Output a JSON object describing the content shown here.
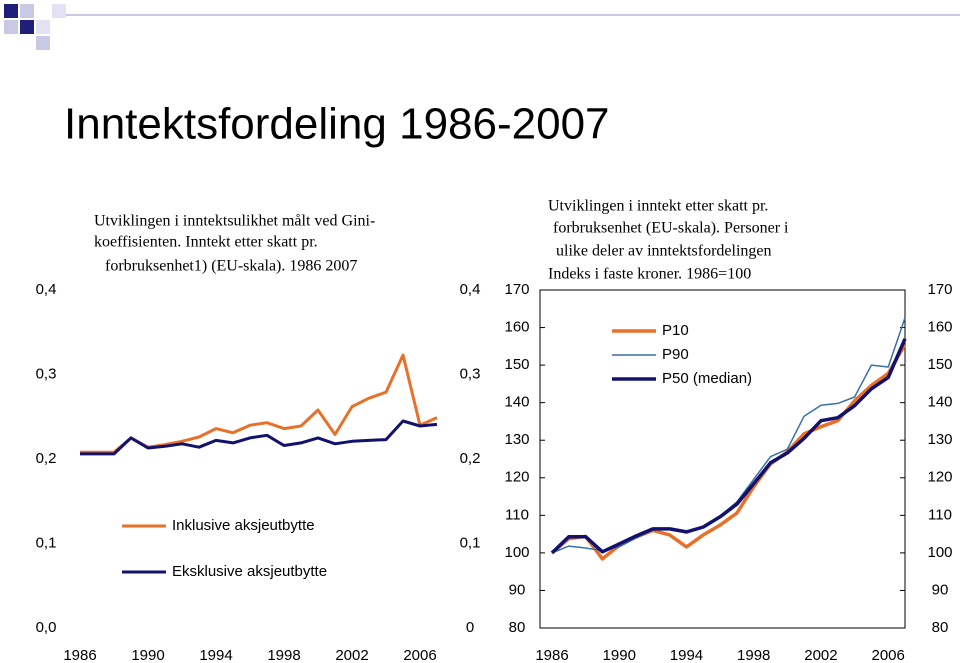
{
  "slide_title": "Inntektsfordeling 1986-2007",
  "chart_data": [
    {
      "type": "line",
      "title": [
        "Utviklingen i inntektsulikhet målt ved Gini-",
        "koeffisienten. Inntekt etter skatt pr.",
        "forbruksenhet1)  (EU-skala). 1986   2007"
      ],
      "x": [
        1986,
        1987,
        1988,
        1989,
        1990,
        1991,
        1992,
        1993,
        1994,
        1995,
        1996,
        1997,
        1998,
        1999,
        2000,
        2001,
        2002,
        2003,
        2004,
        2005,
        2006,
        2007
      ],
      "xlim": [
        1986,
        2007
      ],
      "xticks": [
        1986,
        1990,
        1994,
        1998,
        2002,
        2006
      ],
      "ylim": [
        0,
        0.4
      ],
      "yticks": [
        {
          "value": 0,
          "label": "0,0"
        },
        {
          "value": 0.1,
          "label": "0,1"
        },
        {
          "value": 0.2,
          "label": "0,2"
        },
        {
          "value": 0.3,
          "label": "0,3"
        },
        {
          "value": 0.4,
          "label": "0,4"
        }
      ],
      "y2lim": [
        0,
        0.4
      ],
      "y2ticks": [
        0,
        {
          "value": 0.1,
          "label": "0,1"
        },
        {
          "value": 0.2,
          "label": "0,2"
        },
        {
          "value": 0.3,
          "label": "0,3"
        },
        {
          "value": 0.4,
          "label": "0,4"
        }
      ],
      "series": [
        {
          "name": "Inklusive aksjeutbytte",
          "color": "#e8712a",
          "values": [
            0.208,
            0.208,
            0.208,
            0.225,
            0.214,
            0.217,
            0.221,
            0.226,
            0.236,
            0.231,
            0.24,
            0.243,
            0.236,
            0.239,
            0.258,
            0.229,
            0.262,
            0.272,
            0.279,
            0.323,
            0.24,
            0.249
          ]
        },
        {
          "name": "Eksklusive aksjeutbytte",
          "color": "#12126e",
          "values": [
            0.206,
            0.206,
            0.206,
            0.225,
            0.213,
            0.215,
            0.218,
            0.214,
            0.222,
            0.219,
            0.225,
            0.228,
            0.216,
            0.219,
            0.225,
            0.218,
            0.221,
            0.222,
            0.223,
            0.245,
            0.239,
            0.241
          ]
        }
      ]
    },
    {
      "type": "line",
      "title": [
        "Utviklingen i inntekt etter skatt pr.",
        "forbruksenhet (EU-skala). Personer i",
        "ulike deler av inntektsfordelingen",
        "Indeks i faste kroner. 1986=100"
      ],
      "x": [
        1986,
        1987,
        1988,
        1989,
        1990,
        1991,
        1992,
        1993,
        1994,
        1995,
        1996,
        1997,
        1998,
        1999,
        2000,
        2001,
        2002,
        2003,
        2004,
        2005,
        2006,
        2007
      ],
      "xlim": [
        1986,
        2007
      ],
      "xticks": [
        1986,
        1990,
        1994,
        1998,
        2002,
        2006
      ],
      "ylim": [
        80,
        170
      ],
      "yticks": [
        80,
        90,
        100,
        110,
        120,
        130,
        140,
        150,
        160,
        170
      ],
      "series": [
        {
          "name": "P10",
          "color": "#e8712a",
          "values": [
            100,
            103.8,
            104.4,
            98.4,
            102.0,
            104.2,
            106.0,
            104.8,
            101.6,
            104.8,
            107.4,
            110.6,
            117.6,
            123.7,
            126.9,
            131.7,
            133.6,
            135.2,
            140.5,
            144.6,
            147.8,
            155.5
          ]
        },
        {
          "name": "P90",
          "color": "#3a6fa8",
          "values": [
            100,
            101.8,
            101.3,
            100.6,
            101.6,
            104.0,
            106.1,
            106.4,
            105.3,
            106.9,
            109.8,
            113.6,
            119.6,
            125.6,
            127.6,
            136.4,
            139.3,
            139.8,
            141.5,
            150.0,
            149.5,
            162.6
          ]
        },
        {
          "name": "P50 (median)",
          "color": "#12126e",
          "values": [
            100,
            104.3,
            104.3,
            100.3,
            102.4,
            104.5,
            106.4,
            106.4,
            105.6,
            106.9,
            109.6,
            113.0,
            118.4,
            124.0,
            126.6,
            130.5,
            135.2,
            136.0,
            139.2,
            143.7,
            146.7,
            157.0
          ]
        }
      ]
    }
  ]
}
